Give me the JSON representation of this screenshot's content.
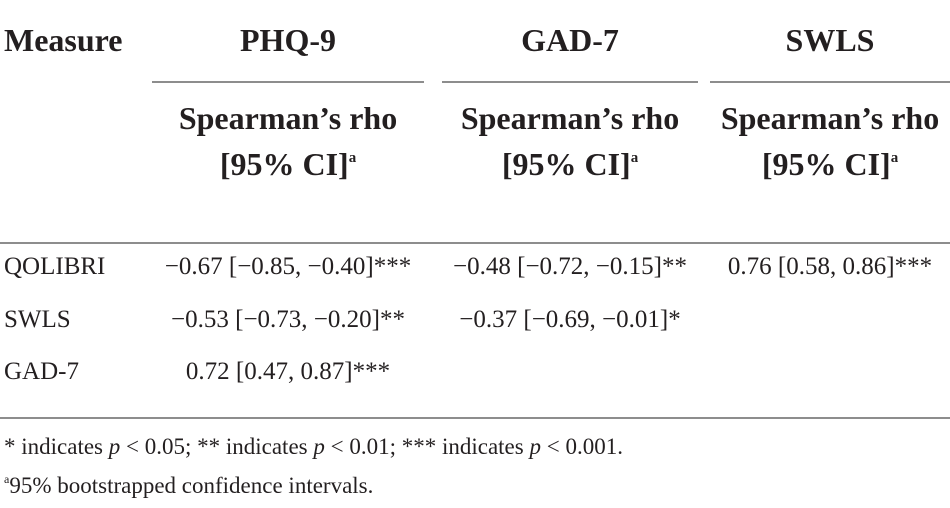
{
  "table": {
    "header": {
      "measure": "Measure",
      "columns": [
        "PHQ-9",
        "GAD-7",
        "SWLS"
      ],
      "subheader_line1": "Spearman’s rho",
      "subheader_line2": "[95% CI]",
      "subheader_marker": "a"
    },
    "rows": [
      {
        "label": "QOLIBRI",
        "cells": [
          "−0.67 [−0.85, −0.40]***",
          "−0.48 [−0.72, −0.15]**",
          "0.76 [0.58, 0.86]***"
        ]
      },
      {
        "label": "SWLS",
        "cells": [
          "−0.53 [−0.73, −0.20]**",
          "−0.37 [−0.69, −0.01]*",
          ""
        ]
      },
      {
        "label": "GAD-7",
        "cells": [
          "0.72 [0.47, 0.87]***",
          "",
          ""
        ]
      }
    ],
    "footnotes": {
      "sig": {
        "p1": "* indicates ",
        "p2": " < 0.05; ** indicates ",
        "p3": " < 0.01; *** indicates ",
        "p4": " < 0.001.",
        "pvar": "p"
      },
      "ci_marker": "a",
      "ci_text": "95% bootstrapped confidence intervals."
    }
  }
}
